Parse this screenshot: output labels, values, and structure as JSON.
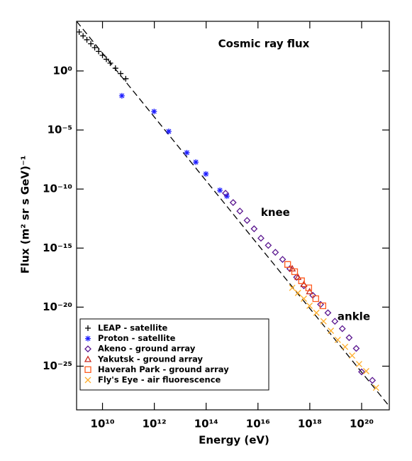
{
  "chart_data": {
    "type": "scatter",
    "title": "Cosmic ray flux",
    "x_label": "Energy (eV)",
    "y_label": "Flux (m² sr s GeV)⁻¹",
    "x_log": true,
    "y_log": true,
    "xlim": [
      1000000000.0,
      1.17e+21
    ],
    "ylim": [
      16000.0,
      2e-29
    ],
    "xticks": [
      {
        "value": 10000000000.0,
        "label": "10¹⁰"
      },
      {
        "value": 1000000000000.0,
        "label": "10¹²"
      },
      {
        "value": 100000000000000.0,
        "label": "10¹⁴"
      },
      {
        "value": 1e+16,
        "label": "10¹⁶"
      },
      {
        "value": 1e+18,
        "label": "10¹⁸"
      },
      {
        "value": 1e+20,
        "label": "10²⁰"
      }
    ],
    "yticks": [
      {
        "value": 1,
        "label": "10⁰"
      },
      {
        "value": 1e-05,
        "label": "10⁻⁵"
      },
      {
        "value": 1e-10,
        "label": "10⁻¹⁰"
      },
      {
        "value": 1e-15,
        "label": "10⁻¹⁵"
      },
      {
        "value": 1e-20,
        "label": "10⁻²⁰"
      },
      {
        "value": 1e-25,
        "label": "10⁻²⁵"
      }
    ],
    "legend": "lower left",
    "annotations": [
      {
        "text": "knee",
        "x": 4.7e+16,
        "y": 1e-12
      },
      {
        "text": "ankle",
        "x": 5e+19,
        "y": 1.5e-21
      }
    ],
    "fit_line": {
      "x": [
        1000000000.0,
        1.17e+21
      ],
      "values": [
        16000.0,
        4e-29
      ],
      "color": "#000000"
    },
    "series": [
      {
        "name": "LEAP - satellite",
        "color": "#000000",
        "marker": "plus",
        "x": [
          1260000000.0,
          1780000000.0,
          2500000000.0,
          3550000000.0,
          5000000000.0,
          7100000000.0,
          10000000000.0,
          14100000000.0,
          20000000000.0,
          31600000000.0,
          50000000000.0,
          79000000000.0
        ],
        "values": [
          2000,
          930,
          440,
          200,
          95,
          45,
          21,
          9.8,
          4.6,
          1.7,
          0.6,
          0.22
        ]
      },
      {
        "name": "Proton - satellite",
        "color": "#1f1fff",
        "marker": "star",
        "x": [
          56000000000.0,
          980000000000.0,
          3600000000000.0,
          18000000000000.0,
          40000000000000.0,
          98000000000000.0,
          340000000000000.0,
          630000000000000.0
        ],
        "values": [
          0.0079,
          0.00037,
          7.6e-06,
          1.2e-07,
          1.9e-08,
          1.9e-09,
          7.9e-11,
          2.5e-11
        ]
      },
      {
        "name": "Akeno - ground array",
        "color": "#5a168f",
        "marker": "diamond",
        "x": [
          560000000000000.0,
          1100000000000000.0,
          2000000000000000.0,
          3800000000000000.0,
          7100000000000000.0,
          1.3e+16,
          2.5e+16,
          4.7e+16,
          8.9e+16,
          1.7e+17,
          3.1e+17,
          5.9e+17,
          1.3e+18,
          2.6e+18,
          5e+18,
          9.3e+18,
          1.8e+19,
          3.3e+19,
          6.2e+19,
          1e+20,
          2.6e+20
        ],
        "values": [
          4.4e-11,
          7.2e-12,
          1.35e-12,
          2.2e-13,
          4.3e-14,
          6.9e-15,
          1.7e-15,
          4.4e-16,
          1.1e-16,
          1.8e-17,
          3.4e-18,
          6.5e-19,
          1e-19,
          1.7e-20,
          3.3e-21,
          6.3e-22,
          1.5e-22,
          2.6e-23,
          3.2e-24,
          3.3e-26,
          6.3e-27
        ]
      },
      {
        "name": "Yakutsk - ground array",
        "color": "#c8281e",
        "marker": "triangle",
        "x": [
          2.1e+17,
          3.5e+17,
          5.9e+17,
          9.8e+17
        ],
        "values": [
          1.8e-17,
          3.4e-18,
          8.5e-19,
          2.1e-19
        ]
      },
      {
        "name": "Haverah Park - ground array",
        "color": "#ff5a1e",
        "marker": "square",
        "x": [
          1.4e+17,
          2.6e+17,
          4.8e+17,
          9.1e+17,
          1.7e+18,
          3.2e+18
        ],
        "values": [
          4.1e-17,
          1e-17,
          1.7e-18,
          4.3e-19,
          5.2e-20,
          1.3e-20
        ]
      },
      {
        "name": "Fly's Eye - air fluorescence",
        "color": "#ffad2a",
        "marker": "cross",
        "x": [
          2.1e+17,
          3.5e+17,
          5.9e+17,
          9.8e+17,
          1.8e+18,
          3.4e+18,
          6.5e+18,
          1.2e+19,
          2.3e+19,
          4.3e+19,
          8e+19,
          1.5e+20,
          3.6e+20
        ],
        "values": [
          4.3e-19,
          1.6e-19,
          5.2e-20,
          1.3e-20,
          3.3e-21,
          6.3e-22,
          1e-22,
          1.7e-23,
          4.3e-24,
          7.9e-25,
          1.5e-25,
          3.8e-26,
          1.5e-27
        ]
      }
    ]
  }
}
